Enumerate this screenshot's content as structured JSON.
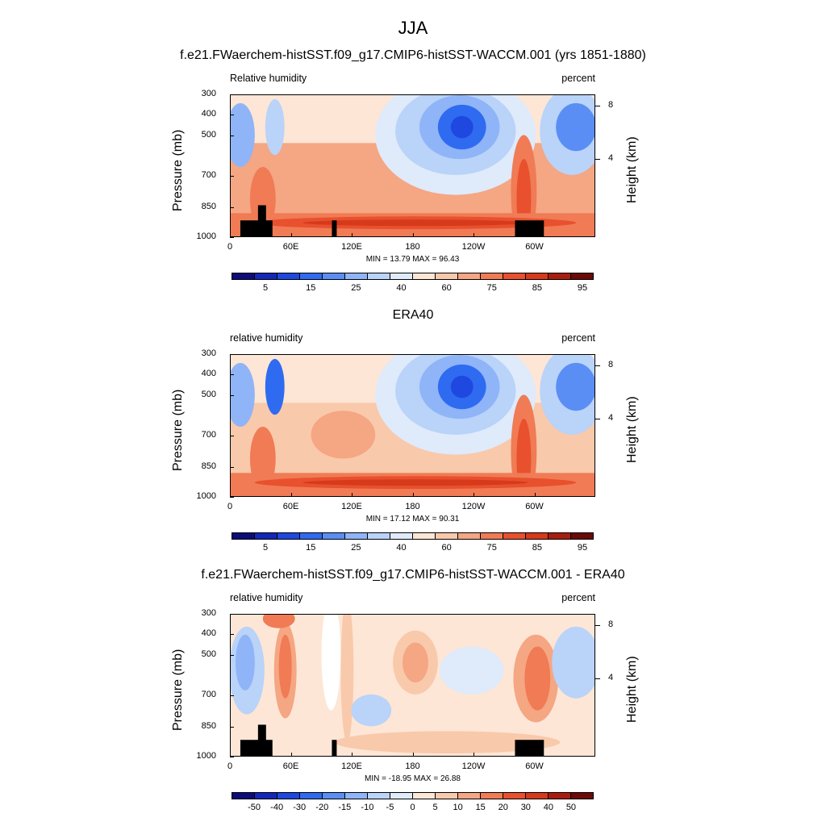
{
  "title": "JJA",
  "panels": [
    {
      "title": "f.e21.FWaerchem-histSST.f09_g17.CMIP6-histSST-WACCM.001 (yrs 1851-1880)",
      "left_label": "Relative humidity",
      "right_label": "percent",
      "min_max": "MIN =  13.79  MAX =  96.43",
      "colorbar_labels": [
        "5",
        "15",
        "25",
        "40",
        "60",
        "75",
        "85",
        "95"
      ],
      "kind": "model"
    },
    {
      "title": "ERA40",
      "left_label": "relative humidity",
      "right_label": "percent",
      "min_max": "MIN =  17.12  MAX =  90.31",
      "colorbar_labels": [
        "5",
        "15",
        "25",
        "40",
        "60",
        "75",
        "85",
        "95"
      ],
      "kind": "obs"
    },
    {
      "title": "f.e21.FWaerchem-histSST.f09_g17.CMIP6-histSST-WACCM.001 - ERA40",
      "left_label": "relative humidity",
      "right_label": "percent",
      "min_max": "MIN = -18.95  MAX =  26.88",
      "colorbar_labels": [
        "-50",
        "-40",
        "-30",
        "-20",
        "-15",
        "-10",
        "-5",
        "0",
        "5",
        "10",
        "15",
        "20",
        "30",
        "40",
        "50"
      ],
      "kind": "diff"
    }
  ],
  "axes": {
    "ylabel": "Pressure (mb)",
    "ylabel_right": "Height (km)",
    "y_ticks": [
      "300",
      "400",
      "500",
      "700",
      "850",
      "1000"
    ],
    "x_ticks": [
      "0",
      "60E",
      "120E",
      "180",
      "120W",
      "60W"
    ],
    "height_ticks": [
      "8",
      "4"
    ]
  },
  "chart_data": [
    {
      "type": "heatmap",
      "title": "f.e21.FWaerchem-histSST.f09_g17.CMIP6-histSST-WACCM.001 (yrs 1851-1880)",
      "variable": "Relative humidity",
      "units": "percent",
      "x": [
        0,
        30,
        60,
        90,
        120,
        150,
        180,
        210,
        240,
        270,
        300,
        330
      ],
      "x_labels": [
        "0",
        "60E",
        "120E",
        "180",
        "120W",
        "60W"
      ],
      "y": [
        300,
        400,
        500,
        700,
        850,
        1000
      ],
      "ylim": [
        1000,
        300
      ],
      "min": 13.79,
      "max": 96.43,
      "colorbar_levels": [
        5,
        10,
        15,
        20,
        25,
        30,
        40,
        50,
        60,
        65,
        70,
        75,
        80,
        85,
        90,
        95
      ],
      "colors": [
        "#0c0c7a",
        "#1428b8",
        "#1f48e0",
        "#2f6bf0",
        "#5a8ef5",
        "#8fb4f7",
        "#b9d3f9",
        "#dfeafb",
        "#fde6d6",
        "#f9c9ab",
        "#f5a683",
        "#f07b55",
        "#e8502e",
        "#d63a1a",
        "#a81e0e",
        "#6b0a06"
      ]
    },
    {
      "type": "heatmap",
      "title": "ERA40",
      "variable": "relative humidity",
      "units": "percent",
      "x": [
        0,
        30,
        60,
        90,
        120,
        150,
        180,
        210,
        240,
        270,
        300,
        330
      ],
      "y": [
        300,
        400,
        500,
        700,
        850,
        1000
      ],
      "ylim": [
        1000,
        300
      ],
      "min": 17.12,
      "max": 90.31,
      "colorbar_levels": [
        5,
        10,
        15,
        20,
        25,
        30,
        40,
        50,
        60,
        65,
        70,
        75,
        80,
        85,
        90,
        95
      ]
    },
    {
      "type": "heatmap",
      "title": "f.e21.FWaerchem-histSST.f09_g17.CMIP6-histSST-WACCM.001 - ERA40",
      "variable": "relative humidity",
      "units": "percent",
      "x": [
        0,
        30,
        60,
        90,
        120,
        150,
        180,
        210,
        240,
        270,
        300,
        330
      ],
      "y": [
        300,
        400,
        500,
        700,
        850,
        1000
      ],
      "ylim": [
        1000,
        300
      ],
      "min": -18.95,
      "max": 26.88,
      "colorbar_levels": [
        -50,
        -40,
        -30,
        -20,
        -15,
        -10,
        -5,
        0,
        5,
        10,
        15,
        20,
        30,
        40,
        50
      ],
      "diff_colors": [
        "#0c0c7a",
        "#1428b8",
        "#1f48e0",
        "#2f6bf0",
        "#5a8ef5",
        "#8fb4f7",
        "#b9d3f9",
        "#dfeafb",
        "#fde6d6",
        "#f9c9ab",
        "#f5a683",
        "#f07b55",
        "#e8502e",
        "#d63a1a",
        "#a81e0e",
        "#6b0a06"
      ]
    }
  ]
}
